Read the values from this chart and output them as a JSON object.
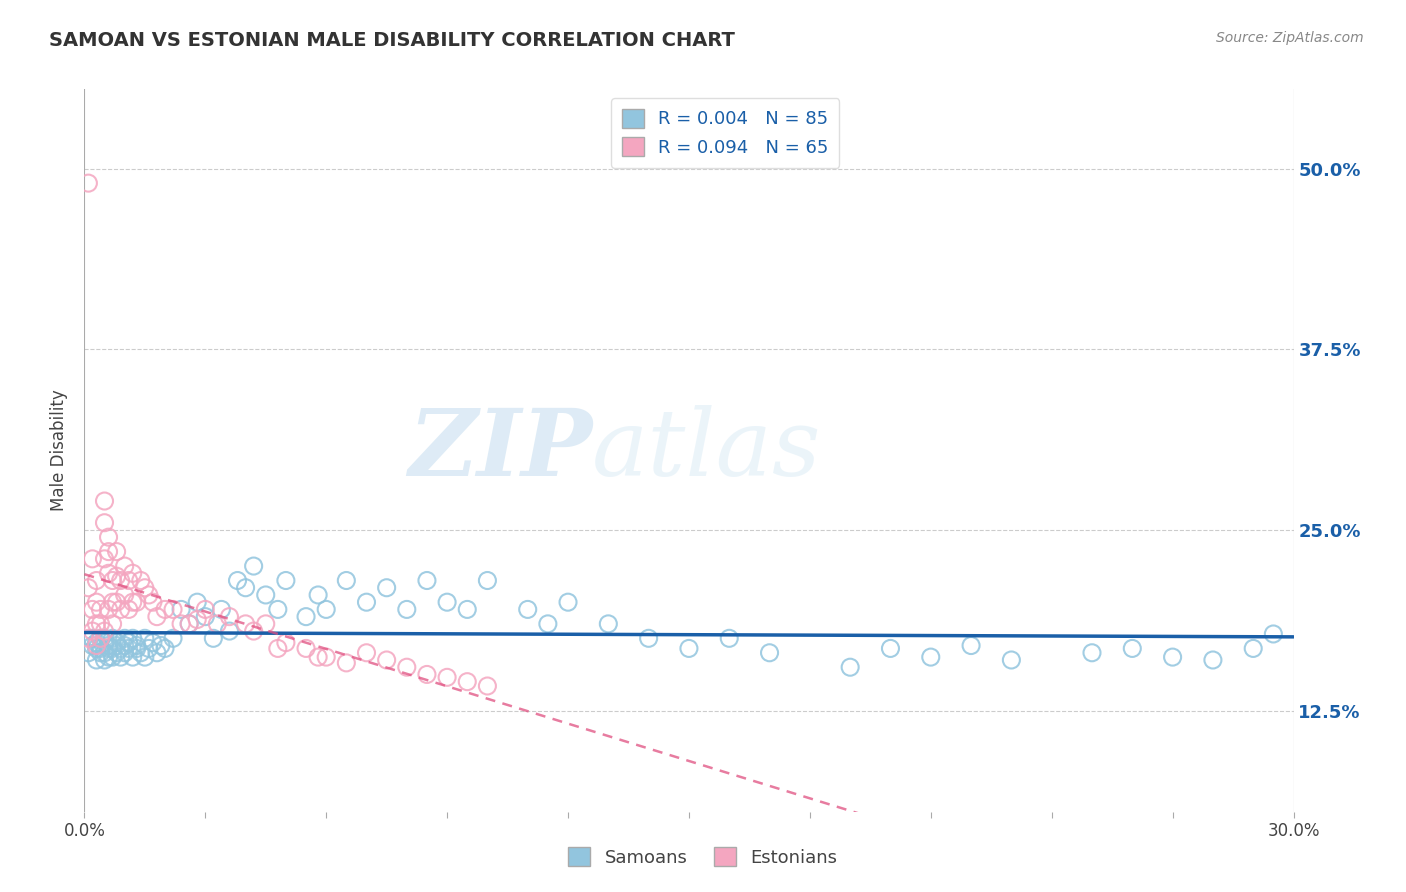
{
  "title": "SAMOAN VS ESTONIAN MALE DISABILITY CORRELATION CHART",
  "source": "Source: ZipAtlas.com",
  "ylabel": "Male Disability",
  "watermark_zip": "ZIP",
  "watermark_atlas": "atlas",
  "legend_samoans_R": "R = 0.004",
  "legend_samoans_N": "N = 85",
  "legend_estonians_R": "R = 0.094",
  "legend_estonians_N": "N = 65",
  "color_samoan": "#92c5de",
  "color_estonian": "#f4a6c0",
  "color_samoan_line": "#1a5fa8",
  "color_estonian_line": "#e05080",
  "xlim": [
    0.0,
    0.3
  ],
  "ylim": [
    0.055,
    0.555
  ],
  "y_tick_positions": [
    0.125,
    0.25,
    0.375,
    0.5
  ],
  "y_tick_labels": [
    "12.5%",
    "25.0%",
    "37.5%",
    "50.0%"
  ],
  "samoan_x": [
    0.001,
    0.002,
    0.002,
    0.003,
    0.003,
    0.003,
    0.004,
    0.004,
    0.004,
    0.005,
    0.005,
    0.005,
    0.005,
    0.006,
    0.006,
    0.006,
    0.007,
    0.007,
    0.007,
    0.008,
    0.008,
    0.008,
    0.009,
    0.009,
    0.01,
    0.01,
    0.01,
    0.011,
    0.011,
    0.012,
    0.012,
    0.013,
    0.013,
    0.014,
    0.015,
    0.015,
    0.016,
    0.017,
    0.018,
    0.019,
    0.02,
    0.022,
    0.024,
    0.026,
    0.028,
    0.03,
    0.032,
    0.034,
    0.036,
    0.038,
    0.04,
    0.042,
    0.045,
    0.048,
    0.05,
    0.055,
    0.058,
    0.06,
    0.065,
    0.07,
    0.075,
    0.08,
    0.085,
    0.09,
    0.095,
    0.1,
    0.11,
    0.115,
    0.12,
    0.13,
    0.14,
    0.15,
    0.16,
    0.17,
    0.19,
    0.2,
    0.21,
    0.22,
    0.23,
    0.25,
    0.26,
    0.27,
    0.28,
    0.29,
    0.295
  ],
  "samoan_y": [
    0.165,
    0.17,
    0.175,
    0.168,
    0.172,
    0.16,
    0.175,
    0.165,
    0.168,
    0.172,
    0.16,
    0.165,
    0.175,
    0.168,
    0.162,
    0.17,
    0.168,
    0.175,
    0.162,
    0.17,
    0.165,
    0.172,
    0.168,
    0.162,
    0.175,
    0.165,
    0.17,
    0.168,
    0.172,
    0.162,
    0.175,
    0.168,
    0.17,
    0.165,
    0.175,
    0.162,
    0.168,
    0.172,
    0.165,
    0.17,
    0.168,
    0.175,
    0.195,
    0.185,
    0.2,
    0.19,
    0.175,
    0.195,
    0.18,
    0.215,
    0.21,
    0.225,
    0.205,
    0.195,
    0.215,
    0.19,
    0.205,
    0.195,
    0.215,
    0.2,
    0.21,
    0.195,
    0.215,
    0.2,
    0.195,
    0.215,
    0.195,
    0.185,
    0.2,
    0.185,
    0.175,
    0.168,
    0.175,
    0.165,
    0.155,
    0.168,
    0.162,
    0.17,
    0.16,
    0.165,
    0.168,
    0.162,
    0.16,
    0.168,
    0.178
  ],
  "estonian_x": [
    0.001,
    0.001,
    0.001,
    0.002,
    0.002,
    0.002,
    0.003,
    0.003,
    0.003,
    0.003,
    0.004,
    0.004,
    0.004,
    0.005,
    0.005,
    0.005,
    0.005,
    0.006,
    0.006,
    0.006,
    0.006,
    0.007,
    0.007,
    0.007,
    0.008,
    0.008,
    0.008,
    0.009,
    0.009,
    0.01,
    0.01,
    0.011,
    0.011,
    0.012,
    0.012,
    0.013,
    0.014,
    0.015,
    0.016,
    0.017,
    0.018,
    0.02,
    0.022,
    0.024,
    0.026,
    0.028,
    0.03,
    0.033,
    0.036,
    0.04,
    0.042,
    0.045,
    0.048,
    0.05,
    0.055,
    0.058,
    0.06,
    0.065,
    0.07,
    0.075,
    0.08,
    0.085,
    0.09,
    0.095,
    0.1
  ],
  "estonian_y": [
    0.49,
    0.21,
    0.175,
    0.23,
    0.195,
    0.18,
    0.215,
    0.2,
    0.185,
    0.17,
    0.195,
    0.185,
    0.175,
    0.27,
    0.255,
    0.23,
    0.18,
    0.245,
    0.235,
    0.22,
    0.195,
    0.215,
    0.2,
    0.185,
    0.235,
    0.218,
    0.2,
    0.215,
    0.195,
    0.225,
    0.205,
    0.215,
    0.195,
    0.22,
    0.2,
    0.2,
    0.215,
    0.21,
    0.205,
    0.2,
    0.19,
    0.195,
    0.195,
    0.185,
    0.185,
    0.188,
    0.195,
    0.185,
    0.19,
    0.185,
    0.18,
    0.185,
    0.168,
    0.172,
    0.168,
    0.162,
    0.162,
    0.158,
    0.165,
    0.16,
    0.155,
    0.15,
    0.148,
    0.145,
    0.142
  ]
}
